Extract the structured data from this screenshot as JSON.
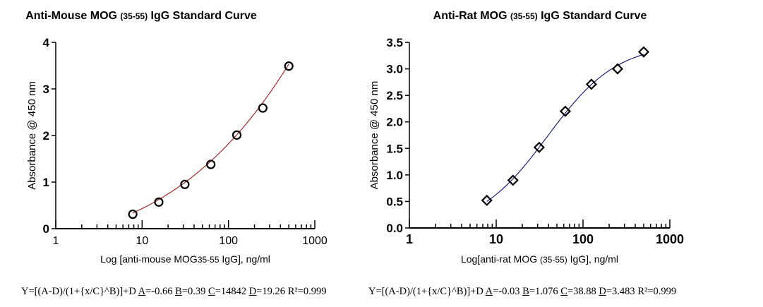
{
  "chart_data": [
    {
      "type": "scatter",
      "title_main": "Anti-Mouse MOG",
      "title_sub": "(35-55)",
      "title_end": "IgG Standard Curve",
      "xlabel_pre": "Log [anti-mouse MOG",
      "xlabel_sub": "35-55",
      "xlabel_post": " IgG], ng/ml",
      "ylabel": "Absorbance @ 450 nm",
      "xscale": "log",
      "xlim": [
        1,
        1000
      ],
      "ylim": [
        0,
        4
      ],
      "xticks": [
        "1",
        "10",
        "100",
        "1000"
      ],
      "yticks": [
        "0",
        "1",
        "2",
        "3",
        "4"
      ],
      "x": [
        7.8,
        15.6,
        31.25,
        62.5,
        125,
        250,
        500
      ],
      "y": [
        0.31,
        0.57,
        0.95,
        1.38,
        2.01,
        2.59,
        3.49
      ],
      "marker": "circle",
      "curve_color": "#a52a2a",
      "fit": {
        "A": -0.66,
        "B": 0.39,
        "C": 14842,
        "D": 19.26
      },
      "equation": {
        "formula": "Y=[(A-D)/(1+{x/C}^B)]+D",
        "A": "=-0.66",
        "B": "=0.39",
        "C": "=14842",
        "D": "=19.26",
        "r2": "R²=0.999"
      }
    },
    {
      "type": "scatter",
      "title_main": "Anti-Rat MOG",
      "title_sub": "(35-55)",
      "title_end": "IgG Standard Curve",
      "xlabel_pre": "Log[anti-rat MOG ",
      "xlabel_sub": "(35-55)",
      "xlabel_post": " IgG], ng/ml",
      "ylabel": "Absorbance @ 450 nm",
      "xscale": "log",
      "xlim": [
        1,
        1000
      ],
      "ylim": [
        0,
        3.5
      ],
      "xticks": [
        "1",
        "10",
        "100",
        "1000"
      ],
      "yticks": [
        "0.0",
        "0.5",
        "1.0",
        "1.5",
        "2.0",
        "2.5",
        "3.0",
        "3.5"
      ],
      "x": [
        7.8,
        15.6,
        31.25,
        62.5,
        125,
        250,
        500
      ],
      "y": [
        0.52,
        0.9,
        1.52,
        2.2,
        2.71,
        3.0,
        3.32
      ],
      "marker": "diamond",
      "curve_color": "#1f1f7a",
      "fit": {
        "A": -0.03,
        "B": 1.076,
        "C": 38.88,
        "D": 3.483
      },
      "equation": {
        "formula": "Y=[(A-D)/(1+{x/C}^B)]+D",
        "A": "=-0.03",
        "B": "=1.076",
        "C": "=38.88",
        "D": "=3.483",
        "r2": "R²=0.999"
      }
    }
  ]
}
